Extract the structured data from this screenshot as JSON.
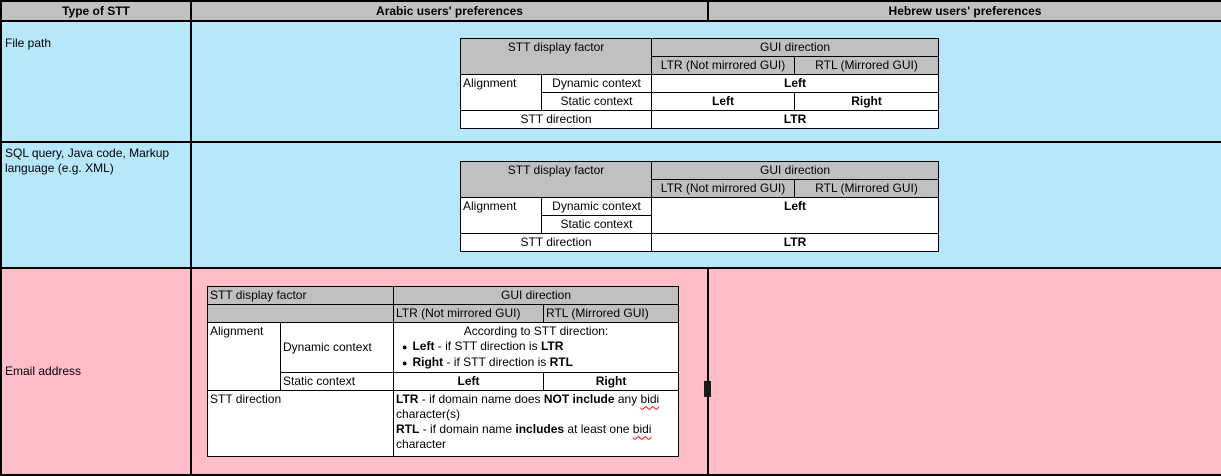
{
  "colors": {
    "header_gray": "#c0c0c0",
    "row_blue": "#b6e7fa",
    "row_pink": "#ffbdc8",
    "border_black": "#000000",
    "squiggle_red": "#ff0000"
  },
  "header": {
    "type_of_stt": "Type of STT",
    "arabic": "Arabic users' preferences",
    "hebrew": "Hebrew users' preferences"
  },
  "rows": [
    {
      "label": "File path"
    },
    {
      "label": "SQL query, Java code, Markup language (e.g. XML)"
    },
    {
      "label": "Email address"
    }
  ],
  "labels": {
    "stt_display_factor": "STT display factor",
    "gui_direction": "GUI direction",
    "ltr_gui": "LTR (Not mirrored GUI)",
    "rtl_gui": "RTL (Mirrored GUI)",
    "alignment": "Alignment",
    "dynamic_context": "Dynamic context",
    "static_context": "Static context",
    "stt_direction": "STT direction"
  },
  "bullet_char": "●",
  "t1": {
    "dynamic_value": "Left",
    "static_ltr_value": "Left",
    "static_rtl_value": "Right",
    "stt_direction_value": "LTR"
  },
  "t2": {
    "dynamic_static_value": "Left",
    "stt_direction_value": "LTR"
  },
  "t3": {
    "dynamic_heading": "According to STT direction:",
    "dynamic_bullets": [
      {
        "segments": [
          {
            "t": "Left",
            "b": true
          },
          {
            "t": " - if STT direction is ",
            "b": false
          },
          {
            "t": "LTR",
            "b": true
          }
        ]
      },
      {
        "segments": [
          {
            "t": "Right",
            "b": true
          },
          {
            "t": " - if STT direction is ",
            "b": false
          },
          {
            "t": "RTL",
            "b": true
          }
        ]
      }
    ],
    "static_ltr_value": "Left",
    "static_rtl_value": "Right",
    "stt_direction_lines": [
      {
        "segments": [
          {
            "t": "LTR",
            "b": true
          },
          {
            "t": " - if domain name does ",
            "b": false
          },
          {
            "t": "NOT include",
            "b": true
          },
          {
            "t": " any ",
            "b": false
          },
          {
            "t": "bidi",
            "b": false,
            "sq": true
          },
          {
            "t": " character(s)",
            "b": false
          }
        ]
      },
      {
        "segments": [
          {
            "t": "RTL",
            "b": true
          },
          {
            "t": " - if domain name ",
            "b": false
          },
          {
            "t": "includes",
            "b": true
          },
          {
            "t": " at least one ",
            "b": false
          },
          {
            "t": "bidi",
            "b": false,
            "sq": true
          },
          {
            "t": " character",
            "b": false
          }
        ]
      }
    ]
  }
}
